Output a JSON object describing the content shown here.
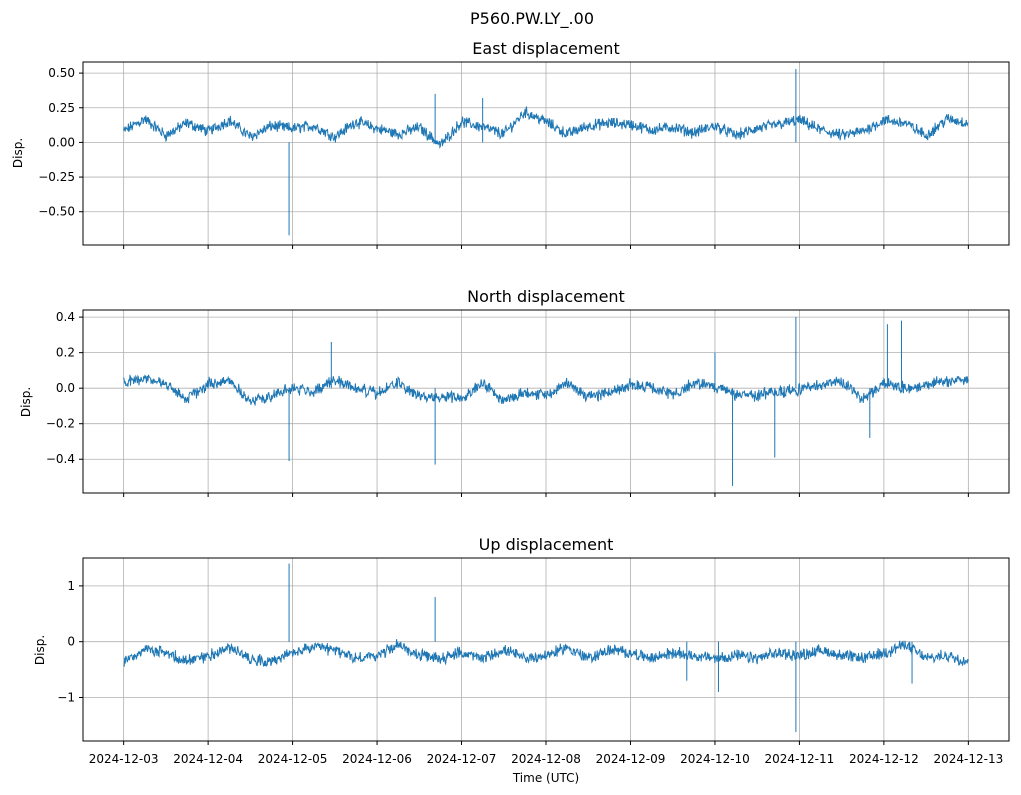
{
  "figure": {
    "suptitle": "P560.PW.LY_.00",
    "xlabel": "Time (UTC)"
  },
  "chart_data": [
    {
      "type": "line",
      "title": "East displacement",
      "ylabel": "Disp.",
      "xlim": [
        "2024-12-02T12:27:00",
        "2024-12-13T11:33:00"
      ],
      "ylim": [
        -0.74,
        0.58
      ],
      "yticks": [
        0.5,
        0.25,
        0.0,
        -0.25,
        -0.5
      ],
      "ytick_labels": [
        "0.50",
        "0.25",
        "0.00",
        "−0.25",
        "−0.50"
      ],
      "grid": true,
      "color": "#1f77b4",
      "x": [
        "2024-12-03T00:00",
        "2024-12-03T06:00",
        "2024-12-03T12:00",
        "2024-12-03T18:00",
        "2024-12-04T00:00",
        "2024-12-04T06:00",
        "2024-12-04T12:00",
        "2024-12-04T18:00",
        "2024-12-05T00:00",
        "2024-12-05T06:00",
        "2024-12-05T12:00",
        "2024-12-05T18:00",
        "2024-12-06T00:00",
        "2024-12-06T06:00",
        "2024-12-06T12:00",
        "2024-12-06T18:00",
        "2024-12-07T00:00",
        "2024-12-07T06:00",
        "2024-12-07T12:00",
        "2024-12-07T18:00",
        "2024-12-08T00:00",
        "2024-12-08T06:00",
        "2024-12-08T12:00",
        "2024-12-08T18:00",
        "2024-12-09T00:00",
        "2024-12-09T06:00",
        "2024-12-09T12:00",
        "2024-12-09T18:00",
        "2024-12-10T00:00",
        "2024-12-10T06:00",
        "2024-12-10T12:00",
        "2024-12-10T18:00",
        "2024-12-11T00:00",
        "2024-12-11T06:00",
        "2024-12-11T12:00",
        "2024-12-11T18:00",
        "2024-12-12T00:00",
        "2024-12-12T06:00",
        "2024-12-12T12:00",
        "2024-12-12T18:00",
        "2024-12-13T00:00"
      ],
      "y": [
        0.08,
        0.17,
        0.05,
        0.14,
        0.08,
        0.16,
        0.04,
        0.12,
        0.1,
        0.12,
        0.04,
        0.15,
        0.1,
        0.06,
        0.11,
        -0.02,
        0.15,
        0.11,
        0.06,
        0.22,
        0.15,
        0.06,
        0.12,
        0.14,
        0.13,
        0.09,
        0.11,
        0.07,
        0.12,
        0.05,
        0.1,
        0.13,
        0.16,
        0.09,
        0.05,
        0.08,
        0.16,
        0.14,
        0.05,
        0.17,
        0.14
      ],
      "spikes": [
        {
          "x": "2024-12-04T23:00",
          "y": -0.67
        },
        {
          "x": "2024-12-10T23:00",
          "y": 0.53
        },
        {
          "x": "2024-12-07T06:00",
          "y": 0.32
        },
        {
          "x": "2024-12-06T16:30",
          "y": 0.35
        }
      ]
    },
    {
      "type": "line",
      "title": "North displacement",
      "ylabel": "Disp.",
      "xlim": [
        "2024-12-02T12:27:00",
        "2024-12-13T11:33:00"
      ],
      "ylim": [
        -0.59,
        0.44
      ],
      "yticks": [
        0.4,
        0.2,
        0.0,
        -0.2,
        -0.4
      ],
      "ytick_labels": [
        "0.4",
        "0.2",
        "0.0",
        "−0.2",
        "−0.4"
      ],
      "grid": true,
      "color": "#1f77b4",
      "x": [
        "2024-12-03T00:00",
        "2024-12-03T06:00",
        "2024-12-03T12:00",
        "2024-12-03T18:00",
        "2024-12-04T00:00",
        "2024-12-04T06:00",
        "2024-12-04T12:00",
        "2024-12-04T18:00",
        "2024-12-05T00:00",
        "2024-12-05T06:00",
        "2024-12-05T12:00",
        "2024-12-05T18:00",
        "2024-12-06T00:00",
        "2024-12-06T06:00",
        "2024-12-06T12:00",
        "2024-12-06T18:00",
        "2024-12-07T00:00",
        "2024-12-07T06:00",
        "2024-12-07T12:00",
        "2024-12-07T18:00",
        "2024-12-08T00:00",
        "2024-12-08T06:00",
        "2024-12-08T12:00",
        "2024-12-08T18:00",
        "2024-12-09T00:00",
        "2024-12-09T06:00",
        "2024-12-09T12:00",
        "2024-12-09T18:00",
        "2024-12-10T00:00",
        "2024-12-10T06:00",
        "2024-12-10T12:00",
        "2024-12-10T18:00",
        "2024-12-11T00:00",
        "2024-12-11T06:00",
        "2024-12-11T12:00",
        "2024-12-11T18:00",
        "2024-12-12T00:00",
        "2024-12-12T06:00",
        "2024-12-12T12:00",
        "2024-12-12T18:00",
        "2024-12-13T00:00"
      ],
      "y": [
        0.03,
        0.06,
        0.02,
        -0.06,
        0.02,
        0.05,
        -0.08,
        -0.04,
        0.0,
        -0.02,
        0.05,
        0.0,
        -0.03,
        0.03,
        -0.05,
        -0.05,
        -0.05,
        0.03,
        -0.07,
        -0.02,
        -0.04,
        0.03,
        -0.05,
        -0.02,
        0.02,
        0.0,
        -0.04,
        0.03,
        0.01,
        -0.04,
        -0.04,
        -0.02,
        -0.01,
        0.02,
        0.04,
        -0.06,
        0.03,
        0.0,
        0.02,
        0.04,
        0.05
      ],
      "spikes": [
        {
          "x": "2024-12-04T23:00",
          "y": -0.41
        },
        {
          "x": "2024-12-05T11:00",
          "y": 0.26
        },
        {
          "x": "2024-12-06T16:30",
          "y": -0.43
        },
        {
          "x": "2024-12-10T05:00",
          "y": -0.55
        },
        {
          "x": "2024-12-10T23:00",
          "y": 0.4
        },
        {
          "x": "2024-12-12T01:00",
          "y": 0.36
        },
        {
          "x": "2024-12-12T05:00",
          "y": 0.38
        },
        {
          "x": "2024-12-10T00:00",
          "y": 0.2
        },
        {
          "x": "2024-12-11T20:00",
          "y": -0.28
        },
        {
          "x": "2024-12-10T17:00",
          "y": -0.39
        }
      ]
    },
    {
      "type": "line",
      "title": "Up displacement",
      "ylabel": "Disp.",
      "xlim": [
        "2024-12-02T12:27:00",
        "2024-12-13T11:33:00"
      ],
      "ylim": [
        -1.78,
        1.5
      ],
      "yticks": [
        1,
        0,
        -1
      ],
      "ytick_labels": [
        "1",
        "0",
        "−1"
      ],
      "grid": true,
      "color": "#1f77b4",
      "x": [
        "2024-12-03T00:00",
        "2024-12-03T06:00",
        "2024-12-03T12:00",
        "2024-12-03T18:00",
        "2024-12-04T00:00",
        "2024-12-04T06:00",
        "2024-12-04T12:00",
        "2024-12-04T18:00",
        "2024-12-05T00:00",
        "2024-12-05T06:00",
        "2024-12-05T12:00",
        "2024-12-05T18:00",
        "2024-12-06T00:00",
        "2024-12-06T06:00",
        "2024-12-06T12:00",
        "2024-12-06T18:00",
        "2024-12-07T00:00",
        "2024-12-07T06:00",
        "2024-12-07T12:00",
        "2024-12-07T18:00",
        "2024-12-08T00:00",
        "2024-12-08T06:00",
        "2024-12-08T12:00",
        "2024-12-08T18:00",
        "2024-12-09T00:00",
        "2024-12-09T06:00",
        "2024-12-09T12:00",
        "2024-12-09T18:00",
        "2024-12-10T00:00",
        "2024-12-10T06:00",
        "2024-12-10T12:00",
        "2024-12-10T18:00",
        "2024-12-11T00:00",
        "2024-12-11T06:00",
        "2024-12-11T12:00",
        "2024-12-11T18:00",
        "2024-12-12T00:00",
        "2024-12-12T06:00",
        "2024-12-12T12:00",
        "2024-12-12T18:00",
        "2024-12-13T00:00"
      ],
      "y": [
        -0.35,
        -0.15,
        -0.2,
        -0.35,
        -0.25,
        -0.1,
        -0.3,
        -0.35,
        -0.2,
        -0.1,
        -0.15,
        -0.3,
        -0.25,
        -0.05,
        -0.25,
        -0.3,
        -0.2,
        -0.3,
        -0.15,
        -0.3,
        -0.25,
        -0.1,
        -0.3,
        -0.15,
        -0.2,
        -0.3,
        -0.2,
        -0.25,
        -0.3,
        -0.25,
        -0.3,
        -0.2,
        -0.25,
        -0.15,
        -0.25,
        -0.3,
        -0.2,
        -0.05,
        -0.3,
        -0.25,
        -0.35
      ],
      "spikes": [
        {
          "x": "2024-12-04T23:00",
          "y": 1.4
        },
        {
          "x": "2024-12-06T16:30",
          "y": 0.8
        },
        {
          "x": "2024-12-10T23:00",
          "y": -1.62
        },
        {
          "x": "2024-12-10T01:00",
          "y": -0.9
        },
        {
          "x": "2024-12-12T08:00",
          "y": -0.75
        },
        {
          "x": "2024-12-09T16:00",
          "y": -0.7
        }
      ]
    }
  ],
  "xaxis": {
    "ticks": [
      "2024-12-03",
      "2024-12-04",
      "2024-12-05",
      "2024-12-06",
      "2024-12-07",
      "2024-12-08",
      "2024-12-09",
      "2024-12-10",
      "2024-12-11",
      "2024-12-12",
      "2024-12-13"
    ]
  }
}
